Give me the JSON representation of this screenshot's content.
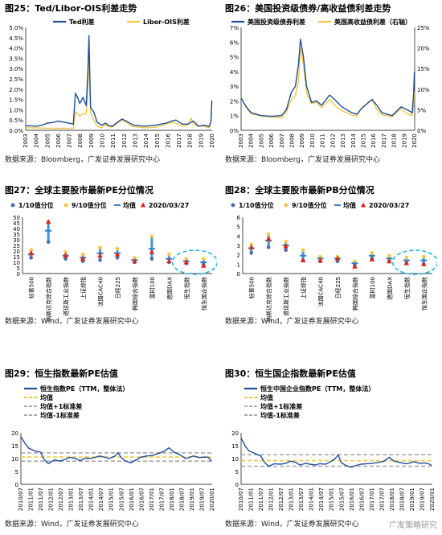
{
  "panels": [
    {
      "id": "p25",
      "title": "图25：Ted/Libor-OIS利差走势",
      "source": "数据来源：Bloomberg，广发证券发展研究中心",
      "chart_data": {
        "type": "line",
        "legend": [
          "Ted利差",
          "Libor-OIS利差"
        ],
        "legend_position": "top",
        "x_ticks": [
          "2003",
          "2004",
          "2005",
          "2006",
          "2007",
          "2008",
          "2009",
          "2010",
          "2011",
          "2012",
          "2013",
          "2014",
          "2015",
          "2016",
          "2017",
          "2018",
          "2019",
          "2020"
        ],
        "y_ticks": [
          "0.0%",
          "0.5%",
          "1.0%",
          "1.5%",
          "2.0%",
          "2.5%",
          "3.0%",
          "3.5%",
          "4.0%",
          "4.5%",
          "5.0%"
        ],
        "ylim": [
          0,
          5
        ],
        "colors": [
          "#1f4e9b",
          "#f2c744"
        ],
        "series": [
          {
            "name": "Ted利差",
            "x": [
              2003,
              2003.5,
              2004,
              2004.5,
              2005,
              2005.5,
              2006,
              2006.5,
              2007,
              2007.4,
              2007.6,
              2007.8,
              2008,
              2008.3,
              2008.6,
              2008.75,
              2008.85,
              2009,
              2009.3,
              2009.6,
              2010,
              2010.4,
              2010.6,
              2011,
              2011.5,
              2011.9,
              2012.3,
              2012.8,
              2013,
              2014,
              2015,
              2016,
              2016.5,
              2016.9,
              2017.5,
              2018,
              2018.5,
              2019,
              2019.5,
              2020,
              2020.15,
              2020.22
            ],
            "values": [
              0.22,
              0.22,
              0.2,
              0.25,
              0.35,
              0.38,
              0.45,
              0.4,
              0.35,
              0.3,
              1.8,
              1.6,
              1.3,
              1.6,
              1.2,
              2.8,
              4.6,
              1.1,
              0.9,
              0.4,
              0.25,
              0.35,
              0.25,
              0.2,
              0.4,
              0.55,
              0.45,
              0.3,
              0.25,
              0.2,
              0.25,
              0.35,
              0.45,
              0.5,
              0.3,
              0.3,
              0.45,
              0.2,
              0.25,
              0.18,
              0.5,
              1.45
            ]
          },
          {
            "name": "Libor-OIS利差",
            "x": [
              2003,
              2004,
              2005,
              2006,
              2007,
              2007.4,
              2007.6,
              2007.8,
              2008,
              2008.3,
              2008.6,
              2008.75,
              2008.85,
              2009,
              2009.3,
              2009.6,
              2010,
              2010.4,
              2010.6,
              2011,
              2011.5,
              2011.9,
              2012.3,
              2012.8,
              2013,
              2014,
              2015,
              2016,
              2016.5,
              2016.9,
              2017.5,
              2018,
              2018.3,
              2018.5,
              2019,
              2019.5,
              2020,
              2020.15,
              2020.22
            ],
            "values": [
              0.12,
              0.12,
              0.1,
              0.1,
              0.1,
              0.1,
              0.9,
              0.8,
              0.7,
              0.8,
              0.8,
              2.0,
              3.6,
              0.9,
              0.5,
              0.2,
              0.12,
              0.3,
              0.2,
              0.15,
              0.35,
              0.5,
              0.4,
              0.2,
              0.18,
              0.12,
              0.15,
              0.3,
              0.4,
              0.35,
              0.2,
              0.25,
              0.6,
              0.3,
              0.2,
              0.2,
              0.12,
              0.5,
              1.35
            ]
          }
        ]
      }
    },
    {
      "id": "p26",
      "title": "图26：美国投资级债券/高收益债利差走势",
      "source": "数据来源：Bloomberg，广发证券发展研究中心",
      "chart_data": {
        "type": "line",
        "legend": [
          "美国投资级债券利差",
          "美国高收益债利差（右轴）"
        ],
        "legend_position": "top",
        "x_ticks": [
          "2003",
          "2004",
          "2005",
          "2006",
          "2007",
          "2008",
          "2009",
          "2010",
          "2011",
          "2012",
          "2013",
          "2014",
          "2015",
          "2016",
          "2017",
          "2018",
          "2019",
          "2020"
        ],
        "y_ticks": [
          "0%",
          "1%",
          "2%",
          "3%",
          "4%",
          "5%",
          "6%",
          "7%"
        ],
        "y2_ticks": [
          "0%",
          "5%",
          "10%",
          "15%",
          "20%",
          "25%"
        ],
        "ylim": [
          0,
          7
        ],
        "y2lim": [
          0,
          25
        ],
        "colors": [
          "#1f4e9b",
          "#f2c744"
        ],
        "series": [
          {
            "name": "美国投资级债券利差",
            "axis": "left",
            "x": [
              2003,
              2003.5,
              2004,
              2005,
              2006,
              2007,
              2007.5,
              2008,
              2008.4,
              2008.7,
              2008.9,
              2009.2,
              2009.5,
              2010,
              2010.5,
              2011,
              2011.8,
              2012.3,
              2013,
              2014,
              2014.5,
              2015,
              2016,
              2016.5,
              2017,
              2018,
              2018.9,
              2019.5,
              2020,
              2020.15,
              2020.22
            ],
            "values": [
              2.2,
              1.6,
              1.2,
              1.0,
              0.95,
              1.0,
              1.4,
              2.6,
              3.0,
              4.5,
              6.2,
              5.0,
              3.0,
              1.9,
              2.0,
              1.7,
              2.4,
              2.1,
              1.6,
              1.2,
              1.1,
              1.5,
              2.1,
              1.7,
              1.2,
              1.0,
              1.6,
              1.4,
              1.2,
              2.5,
              4.0
            ]
          },
          {
            "name": "美国高收益债利差（右轴）",
            "axis": "right",
            "x": [
              2003,
              2003.5,
              2004,
              2005,
              2006,
              2007,
              2007.5,
              2008,
              2008.4,
              2008.7,
              2008.9,
              2009.2,
              2009.5,
              2010,
              2010.5,
              2011,
              2011.8,
              2012.3,
              2013,
              2014,
              2014.5,
              2015,
              2016,
              2016.5,
              2017,
              2018,
              2018.9,
              2019.5,
              2020,
              2020.15,
              2020.22
            ],
            "values": [
              8.0,
              5.5,
              4.0,
              3.5,
              3.2,
              3.0,
              4.5,
              7.5,
              8.5,
              12,
              20,
              16,
              9,
              6.5,
              6.8,
              5.5,
              7.5,
              6.0,
              4.8,
              3.7,
              3.5,
              5.5,
              7.5,
              5.0,
              3.8,
              3.3,
              5.3,
              4.0,
              3.6,
              5.5,
              9.5
            ]
          }
        ]
      }
    },
    {
      "id": "p27",
      "title": "图27：全球主要股市最新PE分位情况",
      "source": "数据来源：Wind，广发证券发展研究中心",
      "chart_data": {
        "type": "scatter",
        "legend": [
          "1/10值分位",
          "9/10值分位",
          "均值",
          "2020/03/27"
        ],
        "legend_position": "top",
        "categories": [
          "标普500",
          "纳斯达克综合指数",
          "道琼斯工业指数",
          "上证综指",
          "法国CAC40",
          "日经225",
          "韩国综合指数",
          "富时100",
          "德国DAX",
          "恒生指数",
          "恒生国企指数"
        ],
        "y_ticks": [
          "0",
          "5",
          "10",
          "15",
          "20",
          "25",
          "30",
          "35",
          "40",
          "45",
          "50"
        ],
        "ylim": [
          0,
          50
        ],
        "colors": [
          "#4a6fb0",
          "#f2c744",
          "#2f80c8",
          "#e3241b"
        ],
        "series": [
          {
            "name": "1/10值分位",
            "values": [
              14,
              28,
              13,
              11,
              12,
              14,
              10,
              13,
              10,
              9,
              8
            ]
          },
          {
            "name": "9/10值分位",
            "values": [
              21,
              46,
              19,
              17,
              23,
              22,
              14,
              33,
              17,
              13,
              13
            ]
          },
          {
            "name": "均值",
            "values": [
              17,
              38,
              16,
              14,
              18,
              18,
              12,
              22,
              13,
              11,
              10
            ]
          },
          {
            "name": "2020/03/27",
            "values": [
              18,
              46,
              16,
              13,
              16,
              17,
              11,
              19,
              11,
              10,
              7
            ]
          }
        ],
        "highlight": "恒生指数, 恒生国企指数"
      }
    },
    {
      "id": "p28",
      "title": "图28：全球主要股市最新PB分位情况",
      "source": "数据来源：Wind，广发证券发展研究中心",
      "chart_data": {
        "type": "scatter",
        "legend": [
          "1/10值分位",
          "9/10值分位",
          "均值",
          "2020/03/27"
        ],
        "legend_position": "top",
        "categories": [
          "标普500",
          "纳斯达克综合指数",
          "道琼斯工业指数",
          "上证综指",
          "法国CAC40",
          "日经225",
          "韩国综合指数",
          "富时100",
          "德国DAX",
          "恒生指数",
          "恒生国企指数"
        ],
        "y_ticks": [
          "0",
          "1",
          "2",
          "3",
          "4",
          "5",
          "6"
        ],
        "ylim": [
          0,
          6
        ],
        "colors": [
          "#4a6fb0",
          "#f2c744",
          "#2f80c8",
          "#e3241b"
        ],
        "series": [
          {
            "name": "1/10值分位",
            "values": [
              2.2,
              2.8,
              2.5,
              1.4,
              1.3,
              1.3,
              0.9,
              1.6,
              1.3,
              1.1,
              1.0
            ]
          },
          {
            "name": "9/10值分位",
            "values": [
              3.1,
              4.2,
              3.4,
              2.5,
              1.8,
              1.8,
              1.3,
              2.2,
              1.9,
              1.7,
              1.8
            ]
          },
          {
            "name": "均值",
            "values": [
              2.7,
              3.5,
              3.0,
              1.9,
              1.6,
              1.6,
              1.1,
              1.9,
              1.6,
              1.4,
              1.4
            ]
          },
          {
            "name": "2020/03/27",
            "values": [
              2.8,
              3.7,
              2.9,
              1.4,
              1.4,
              1.6,
              0.75,
              1.5,
              1.3,
              1.1,
              1.0
            ]
          }
        ],
        "highlight": "恒生指数, 恒生国企指数"
      }
    },
    {
      "id": "p29",
      "title": "图29：恒生指数最新PE估值",
      "source": "数据来源：Wind，广发证券发展研究中心",
      "chart_data": {
        "type": "line",
        "legend": [
          "恒生指数PE（TTM，整体法）",
          "均值",
          "均值+1标准差",
          "均值-1标准差"
        ],
        "legend_position": "top",
        "x_ticks": [
          "2010/07",
          "2011/01",
          "2011/07",
          "2012/01",
          "2012/07",
          "2013/01",
          "2013/07",
          "2014/01",
          "2014/07",
          "2015/01",
          "2015/07",
          "2016/01",
          "2016/07",
          "2017/01",
          "2017/07",
          "2018/01",
          "2018/07",
          "2019/01",
          "2019/07",
          "2020/01"
        ],
        "y_ticks": [
          "0",
          "5",
          "10",
          "15",
          "20"
        ],
        "ylim": [
          0,
          20
        ],
        "colors": [
          "#1f4e9b",
          "#f2c744",
          "#aaaaaa",
          "#aaaaaa"
        ],
        "mean": 10.6,
        "plus1sd": 12.2,
        "minus1sd": 9.0,
        "series": [
          {
            "name": "恒生指数PE（TTM，整体法）",
            "x": [
              2010.5,
              2010.7,
              2010.9,
              2011.2,
              2011.5,
              2011.7,
              2011.9,
              2012.2,
              2012.5,
              2012.8,
              2013.0,
              2013.3,
              2013.5,
              2013.8,
              2014.0,
              2014.3,
              2014.5,
              2014.8,
              2015.0,
              2015.3,
              2015.45,
              2015.6,
              2015.8,
              2016.1,
              2016.3,
              2016.6,
              2016.9,
              2017.2,
              2017.5,
              2017.8,
              2018.05,
              2018.3,
              2018.6,
              2018.9,
              2019.1,
              2019.3,
              2019.6,
              2019.9,
              2020.05,
              2020.22
            ],
            "values": [
              18.5,
              16,
              14,
              13,
              12.5,
              9.5,
              8,
              9.5,
              9,
              9.8,
              10.5,
              10,
              9.2,
              10.2,
              10,
              10.5,
              11,
              10.5,
              10,
              11,
              12.3,
              10.5,
              9.2,
              8.3,
              9.2,
              10.5,
              11,
              11.2,
              12,
              12.8,
              14.2,
              12.5,
              11.5,
              10,
              10.5,
              11,
              10.4,
              10.6,
              10.5,
              8.9
            ]
          }
        ]
      }
    },
    {
      "id": "p30",
      "title": "图30：恒生国企指数最新PE估值",
      "source": "数据来源：Wind，广发证券发展研究中心",
      "chart_data": {
        "type": "line",
        "legend": [
          "恒生中国企业指数PE（TTM，整体法）",
          "均值",
          "均值+1标准差",
          "均值-1标准差"
        ],
        "legend_position": "top",
        "x_ticks": [
          "2010/07",
          "2011/01",
          "2011/07",
          "2012/01",
          "2012/07",
          "2013/01",
          "2013/07",
          "2014/01",
          "2014/07",
          "2015/01",
          "2015/07",
          "2016/01",
          "2016/07",
          "2017/01",
          "2017/07",
          "2018/01",
          "2018/07",
          "2019/01",
          "2019/07",
          "2020/01"
        ],
        "y_ticks": [
          "0",
          "5",
          "10",
          "15",
          "20"
        ],
        "ylim": [
          0,
          20
        ],
        "colors": [
          "#1f4e9b",
          "#f2c744",
          "#aaaaaa",
          "#aaaaaa"
        ],
        "mean": 9.2,
        "plus1sd": 11.5,
        "minus1sd": 7.0,
        "series": [
          {
            "name": "恒生中国企业指数PE（TTM，整体法）",
            "x": [
              2010.5,
              2010.7,
              2010.9,
              2011.2,
              2011.5,
              2011.7,
              2011.9,
              2012.2,
              2012.5,
              2012.8,
              2013.0,
              2013.3,
              2013.5,
              2013.8,
              2014.0,
              2014.3,
              2014.5,
              2014.8,
              2015.0,
              2015.3,
              2015.45,
              2015.6,
              2015.8,
              2016.1,
              2016.3,
              2016.6,
              2016.9,
              2017.2,
              2017.5,
              2017.8,
              2018.05,
              2018.3,
              2018.6,
              2018.9,
              2019.1,
              2019.3,
              2019.6,
              2019.9,
              2020.05,
              2020.22
            ],
            "values": [
              18,
              15,
              13,
              12,
              11,
              8.5,
              7,
              8,
              7.8,
              8.2,
              9,
              8.5,
              7.5,
              8.2,
              7.8,
              7.5,
              8,
              7.8,
              8.5,
              10,
              11.5,
              8.5,
              7.5,
              6.6,
              7.2,
              7.8,
              8,
              8.2,
              8.5,
              9,
              10.5,
              9,
              8.5,
              8,
              8.3,
              8.8,
              8.2,
              8.3,
              8,
              7.3
            ]
          }
        ]
      }
    }
  ],
  "watermark": "广发策略研究"
}
